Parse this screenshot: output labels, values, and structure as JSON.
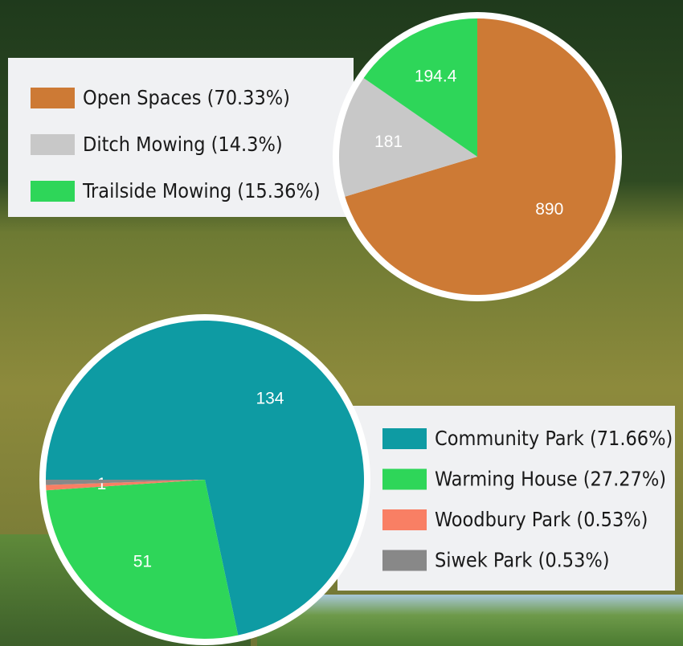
{
  "chart_data": [
    {
      "type": "pie",
      "categories": [
        "Open Spaces (70.33%)",
        "Ditch Mowing (14.3%)",
        "Trailside Mowing (15.36%)"
      ],
      "values": [
        890,
        181,
        194.4
      ],
      "colors": [
        "#cd7a35",
        "#c8c8c8",
        "#2ed659"
      ],
      "start_angle": 0,
      "legend": "left"
    },
    {
      "type": "pie",
      "categories": [
        "Community Park (71.66%)",
        "Warming House (27.27%)",
        "Woodbury Park (0.53%)",
        "Siwek Park (0.53%)"
      ],
      "values": [
        134,
        51,
        1,
        1
      ],
      "value_labels": [
        "134",
        "51",
        "1",
        null
      ],
      "colors": [
        "#0e9ba3",
        "#2ed659",
        "#f97f64",
        "#888888"
      ],
      "start_angle": 270,
      "legend": "right"
    }
  ]
}
